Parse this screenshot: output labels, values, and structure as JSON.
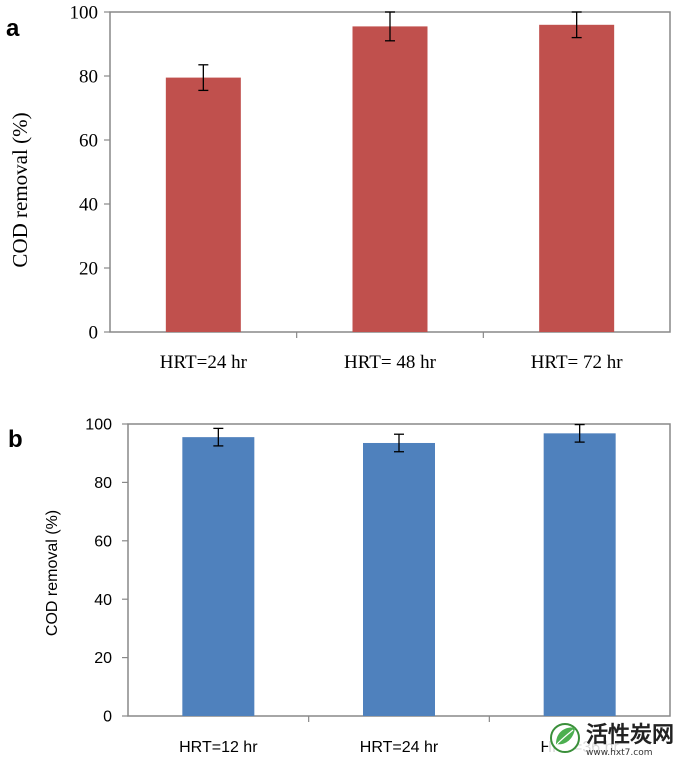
{
  "chart_data": [
    {
      "panel": "a",
      "type": "bar",
      "categories": [
        "HRT=24 hr",
        "HRT= 48 hr",
        "HRT= 72 hr"
      ],
      "values": [
        79.5,
        95.5,
        96
      ],
      "errors": [
        4,
        4.5,
        4
      ],
      "xlabel": "",
      "ylabel": "COD removal (%)",
      "ylim": [
        0,
        100
      ],
      "yticks": [
        0,
        20,
        40,
        60,
        80,
        100
      ],
      "bar_color": "#c0504d",
      "grid": false
    },
    {
      "panel": "b",
      "type": "bar",
      "categories": [
        "HRT=12 hr",
        "HRT=24 hr",
        "HRT=36 hr"
      ],
      "values": [
        95.5,
        93.5,
        96.8
      ],
      "errors": [
        3,
        3,
        3
      ],
      "xlabel": "",
      "ylabel": "COD removal (%)",
      "ylim": [
        0,
        100
      ],
      "yticks": [
        0,
        20,
        40,
        60,
        80,
        100
      ],
      "bar_color": "#4f81bd",
      "grid": false
    }
  ],
  "watermark": {
    "text": "活性炭网",
    "url": "www.hxt7.com"
  }
}
